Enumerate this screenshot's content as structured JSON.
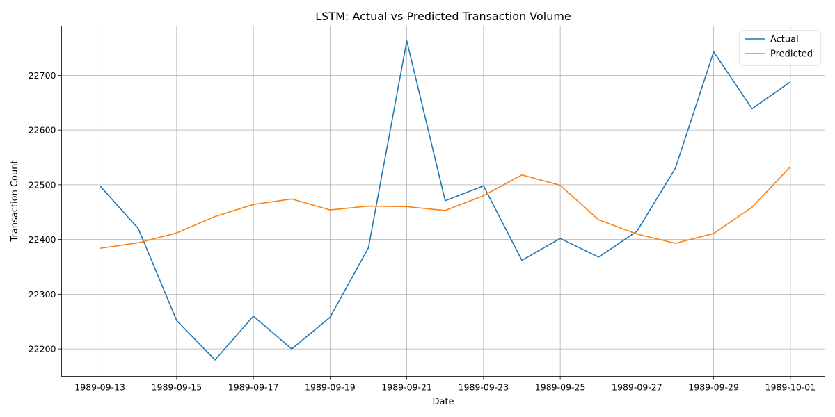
{
  "chart_data": {
    "type": "line",
    "title": "LSTM: Actual vs Predicted Transaction Volume",
    "xlabel": "Date",
    "ylabel": "Transaction Count",
    "x": [
      "1989-09-13",
      "1989-09-14",
      "1989-09-15",
      "1989-09-16",
      "1989-09-17",
      "1989-09-18",
      "1989-09-19",
      "1989-09-20",
      "1989-09-21",
      "1989-09-22",
      "1989-09-23",
      "1989-09-24",
      "1989-09-25",
      "1989-09-26",
      "1989-09-27",
      "1989-09-28",
      "1989-09-29",
      "1989-09-30",
      "1989-10-01"
    ],
    "x_ticks": [
      "1989-09-13",
      "1989-09-15",
      "1989-09-17",
      "1989-09-19",
      "1989-09-21",
      "1989-09-23",
      "1989-09-25",
      "1989-09-27",
      "1989-09-29",
      "1989-10-01"
    ],
    "y_ticks": [
      22200,
      22300,
      22400,
      22500,
      22600,
      22700
    ],
    "ylim": [
      22150,
      22790
    ],
    "xlim": [
      "1989-09-12",
      "1989-10-01"
    ],
    "grid": true,
    "legend_position": "top-right",
    "series": [
      {
        "name": "Actual",
        "color": "#1f77b4",
        "values": [
          22498,
          22420,
          22252,
          22180,
          22260,
          22200,
          22258,
          22385,
          22763,
          22471,
          22498,
          22362,
          22402,
          22368,
          22415,
          22530,
          22743,
          22639,
          22688
        ]
      },
      {
        "name": "Predicted",
        "color": "#ff7f0e",
        "values": [
          22384,
          22394,
          22412,
          22442,
          22464,
          22474,
          22454,
          22461,
          22460,
          22453,
          22480,
          22518,
          22499,
          22436,
          22410,
          22393,
          22411,
          22459,
          22533
        ]
      }
    ]
  }
}
